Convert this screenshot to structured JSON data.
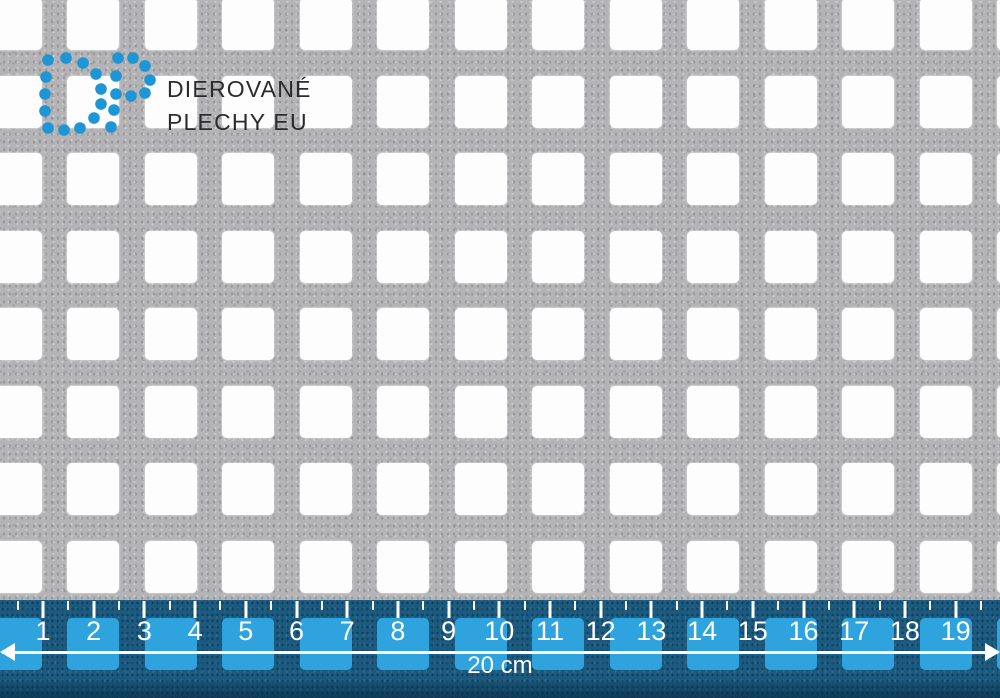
{
  "brand": {
    "logo_letters": "DP",
    "name_line1": "DIEROVANÉ",
    "name_line2": "PLECHY EU",
    "logo_color": "#1e95d4",
    "text_color": "#2b2b2d"
  },
  "sheet": {
    "metal_color": "#b4b3b5",
    "hole_color": "#fdfdfd"
  },
  "ruler": {
    "numbers": [
      "1",
      "2",
      "3",
      "4",
      "5",
      "6",
      "7",
      "8",
      "9",
      "10",
      "11",
      "12",
      "13",
      "14",
      "15",
      "16",
      "17",
      "18",
      "19"
    ],
    "length_label": "20 cm",
    "band_color": "#1c5a7f",
    "hole_color": "#2ea3dd",
    "tick_color": "#ffffff",
    "arrow_color": "#ffffff"
  }
}
